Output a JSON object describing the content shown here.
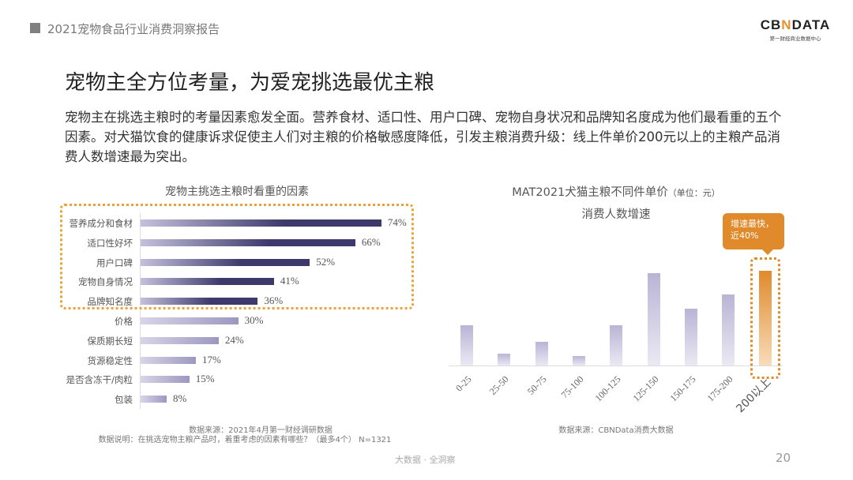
{
  "header": {
    "report_title": "2021宠物食品行业消费洞察报告",
    "logo_text": "CBNDATA",
    "logo_sub": "第一财经商业数据中心"
  },
  "title": "宠物主全方位考量，为爱宠挑选最优主粮",
  "description": "宠物主在挑选主粮时的考量因素愈发全面。营养食材、适口性、用户口碑、宠物自身状况和品牌知名度成为他们最看重的五个因素。对犬猫饮食的健康诉求促使主人们对主粮的价格敏感度降低，引发主粮消费升级：线上件单价200元以上的主粮产品消费人数增速最为突出。",
  "chart_data": [
    {
      "type": "bar",
      "orientation": "horizontal",
      "title": "宠物主挑选主粮时看重的因素",
      "categories": [
        "营养成分和食材",
        "适口性好坏",
        "用户口碑",
        "宠物自身情况",
        "品牌知名度",
        "价格",
        "保质期长短",
        "货源稳定性",
        "是否含冻干/肉粒",
        "包装"
      ],
      "values": [
        74,
        66,
        52,
        41,
        36,
        30,
        24,
        17,
        15,
        8
      ],
      "value_labels": [
        "74%",
        "66%",
        "52%",
        "41%",
        "36%",
        "30%",
        "24%",
        "17%",
        "15%",
        "8%"
      ],
      "highlighted_top": 5,
      "highlight_color": "#e8a33a",
      "bar_color": "#3d3a6b",
      "source": "数据来源：2021年4月第一财经调研数据",
      "note": "数据说明：在挑选宠物主粮产品时，着重考虑的因素有哪些？（最多4个） N=1321"
    },
    {
      "type": "bar",
      "title": "MAT2021犬猫主粮不同件单价",
      "title_unit": "（单位：元）",
      "subtitle": "消费人数增速",
      "categories": [
        "0-25",
        "25-50",
        "50-75",
        "75-100",
        "100-125",
        "125-150",
        "150-175",
        "175-200",
        "200以上"
      ],
      "values": [
        17,
        5,
        10,
        4,
        17,
        39,
        24,
        30,
        40
      ],
      "bar_color": "#b9b4d6",
      "highlight_color": "#e08a2c",
      "highlighted": "200以上",
      "callout": "增速最快，近40%",
      "callout_lines": [
        "增速最快，",
        "近40%"
      ],
      "source": "数据来源：CBNData消费大数据"
    }
  ],
  "footer": {
    "tagline": "大数据 · 全洞察",
    "page": "20"
  }
}
